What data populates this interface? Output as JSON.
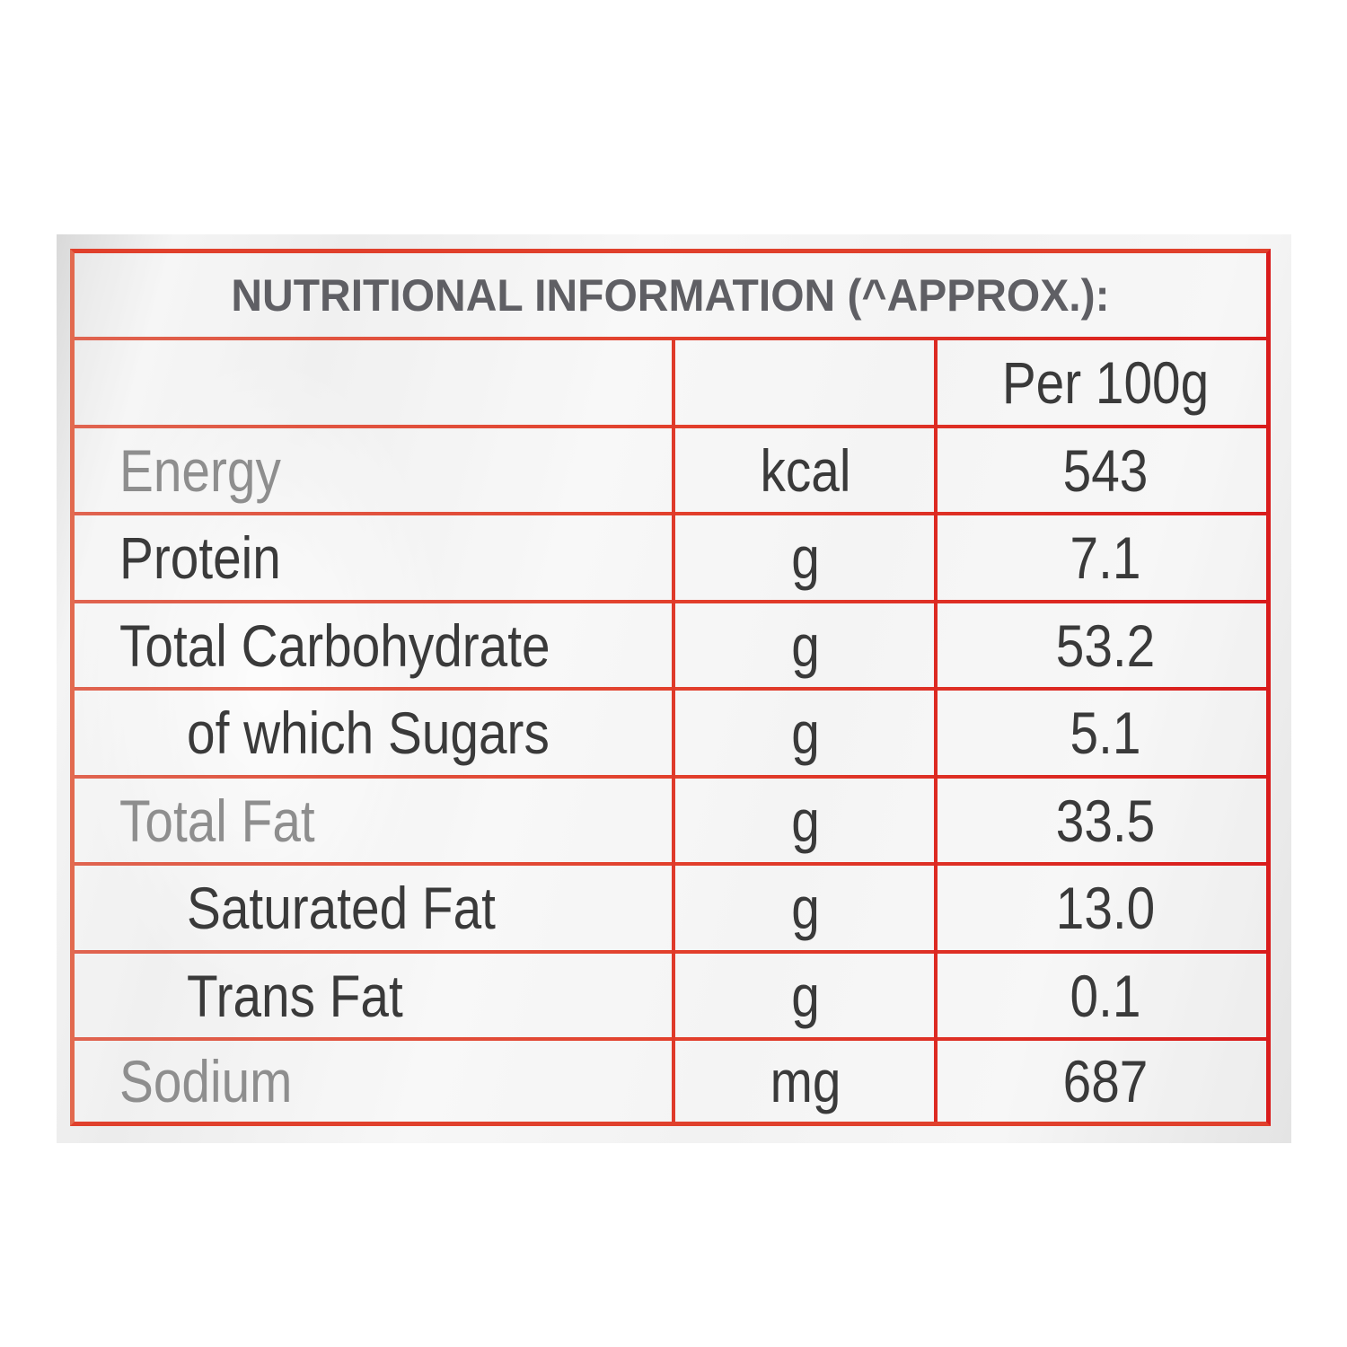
{
  "title": "NUTRITIONAL INFORMATION (^APPROX.):",
  "column_header": "Per 100g",
  "rows": [
    {
      "name": "Energy",
      "unit": "kcal",
      "value": "543"
    },
    {
      "name": "Protein",
      "unit": "g",
      "value": "7.1"
    },
    {
      "name": "Total Carbohydrate",
      "unit": "g",
      "value": "53.2"
    },
    {
      "name": "of which Sugars",
      "unit": "g",
      "value": "5.1"
    },
    {
      "name": "Total Fat",
      "unit": "g",
      "value": "33.5"
    },
    {
      "name": "Saturated Fat",
      "unit": "g",
      "value": "13.0"
    },
    {
      "name": "Trans Fat",
      "unit": "g",
      "value": "0.1"
    },
    {
      "name": "Sodium",
      "unit": "mg",
      "value": "687"
    }
  ],
  "colors": {
    "border": "#e0402c",
    "text": "#3a3a3a",
    "title": "#5f5f64"
  }
}
